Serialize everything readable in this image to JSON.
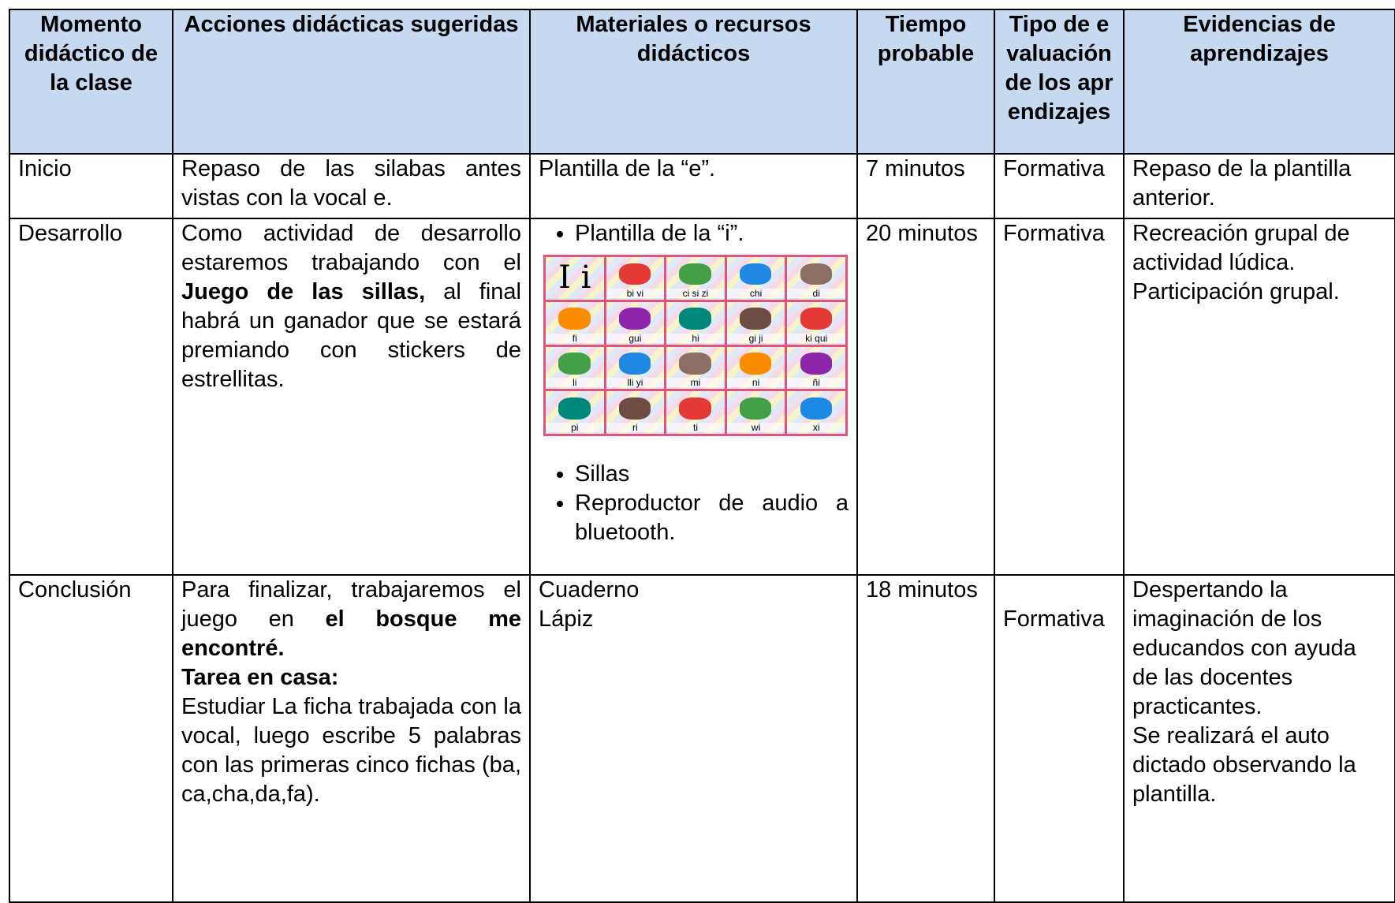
{
  "table": {
    "header": [
      "Momento didáctico de la clase",
      "Acciones didácticas sugeridas",
      "Materiales o recursos didácticos",
      "Tiempo probable",
      "Tipo de evaluación de los aprendizajes",
      "Evidencias de aprendizajes"
    ],
    "rows": [
      {
        "moment": "Inicio",
        "actions": [
          [
            {
              "text": "Repaso de las silabas antes vistas con la vocal e.",
              "bold": false
            }
          ]
        ],
        "materials": [
          "Plantilla de la “e”."
        ],
        "time": "7 minutos",
        "evaluation": "Formativa",
        "evidence": [
          "Repaso de la plantilla anterior."
        ]
      },
      {
        "moment": "Desarrollo",
        "actions": [
          [
            {
              "text": "Como actividad de desarrollo estaremos trabajando con el ",
              "bold": false
            },
            {
              "text": "Juego de las sillas,",
              "bold": true
            },
            {
              "text": " al final habrá un ganador que se estará premiando con stickers de estrellitas.",
              "bold": false
            }
          ]
        ],
        "materials": [
          "Plantilla de la “i”.",
          "Sillas",
          "Reproductor de audio a bluetooth."
        ],
        "image": {
          "letter": "I i",
          "syllables": [
            "bi vi",
            "ci si zi",
            "chi",
            "di",
            "fi",
            "gui",
            "hi",
            "gi ji",
            "ki qui",
            "li",
            "lli yi",
            "mi",
            "ni",
            "ñi",
            "pi",
            "ri",
            "ti",
            "wi",
            "xi"
          ]
        },
        "time": "20 minutos",
        "evaluation": "Formativa",
        "evidence": [
          "Recreación grupal de actividad lúdica.",
          "Participación grupal."
        ]
      },
      {
        "moment": "Conclusión",
        "actions": [
          [
            {
              "text": "Para finalizar, trabajaremos el juego en ",
              "bold": false
            },
            {
              "text": "el bosque me encontré.",
              "bold": true
            }
          ],
          [
            {
              "text": "Tarea en casa:",
              "bold": true
            }
          ],
          [
            {
              "text": "Estudiar La ficha trabajada con la vocal, luego escribe 5 palabras con las primeras cinco fichas (ba, ca,cha,da,fa).",
              "bold": false
            }
          ]
        ],
        "materials": [
          "Cuaderno",
          "Lápiz"
        ],
        "time": "18 minutos",
        "evaluation": "Formativa",
        "evidence": [
          "Despertando la imaginación de los educandos con ayuda de las docentes practicantes.",
          "Se realizará el auto dictado observando la plantilla."
        ]
      }
    ]
  }
}
